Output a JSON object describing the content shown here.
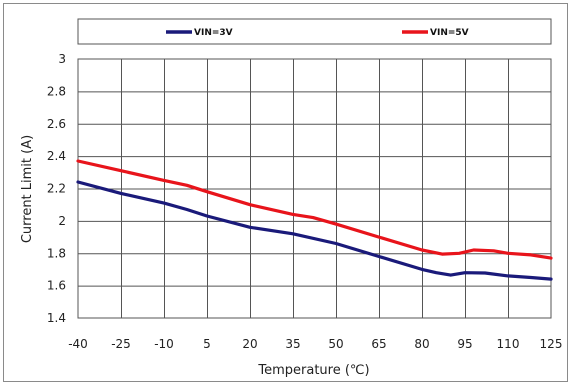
{
  "chart_data": {
    "type": "line",
    "xlabel": "Temperature (℃)",
    "ylabel": "Current Limit (A)",
    "x": [
      -40,
      -25,
      -10,
      5,
      20,
      35,
      50,
      65,
      80,
      95,
      110,
      125
    ],
    "x_ticks": [
      "-40",
      "-25",
      "-10",
      "5",
      "20",
      "35",
      "50",
      "65",
      "80",
      "95",
      "110",
      "125"
    ],
    "y_ticks": [
      "1.4",
      "1.6",
      "1.8",
      "2",
      "2.2",
      "2.4",
      "2.6",
      "2.8",
      "3"
    ],
    "xlim": [
      -40,
      125
    ],
    "ylim": [
      1.4,
      3.0
    ],
    "grid": true,
    "legend_position": "top",
    "series": [
      {
        "name": "VIN=3V",
        "color": "#1a1a7a",
        "points": [
          [
            -40,
            2.24
          ],
          [
            -25,
            2.17
          ],
          [
            -10,
            2.11
          ],
          [
            -2,
            2.07
          ],
          [
            5,
            2.03
          ],
          [
            20,
            1.96
          ],
          [
            35,
            1.92
          ],
          [
            50,
            1.86
          ],
          [
            65,
            1.78
          ],
          [
            80,
            1.7
          ],
          [
            85,
            1.68
          ],
          [
            90,
            1.665
          ],
          [
            95,
            1.68
          ],
          [
            102,
            1.678
          ],
          [
            110,
            1.66
          ],
          [
            118,
            1.65
          ],
          [
            125,
            1.64
          ]
        ]
      },
      {
        "name": "VIN=5V",
        "color": "#e8141b",
        "points": [
          [
            -40,
            2.37
          ],
          [
            -25,
            2.31
          ],
          [
            -10,
            2.25
          ],
          [
            -2,
            2.22
          ],
          [
            5,
            2.18
          ],
          [
            20,
            2.1
          ],
          [
            35,
            2.04
          ],
          [
            42,
            2.02
          ],
          [
            50,
            1.98
          ],
          [
            65,
            1.9
          ],
          [
            80,
            1.82
          ],
          [
            87,
            1.795
          ],
          [
            93,
            1.8
          ],
          [
            98,
            1.82
          ],
          [
            105,
            1.815
          ],
          [
            110,
            1.8
          ],
          [
            118,
            1.79
          ],
          [
            125,
            1.77
          ]
        ]
      }
    ]
  }
}
